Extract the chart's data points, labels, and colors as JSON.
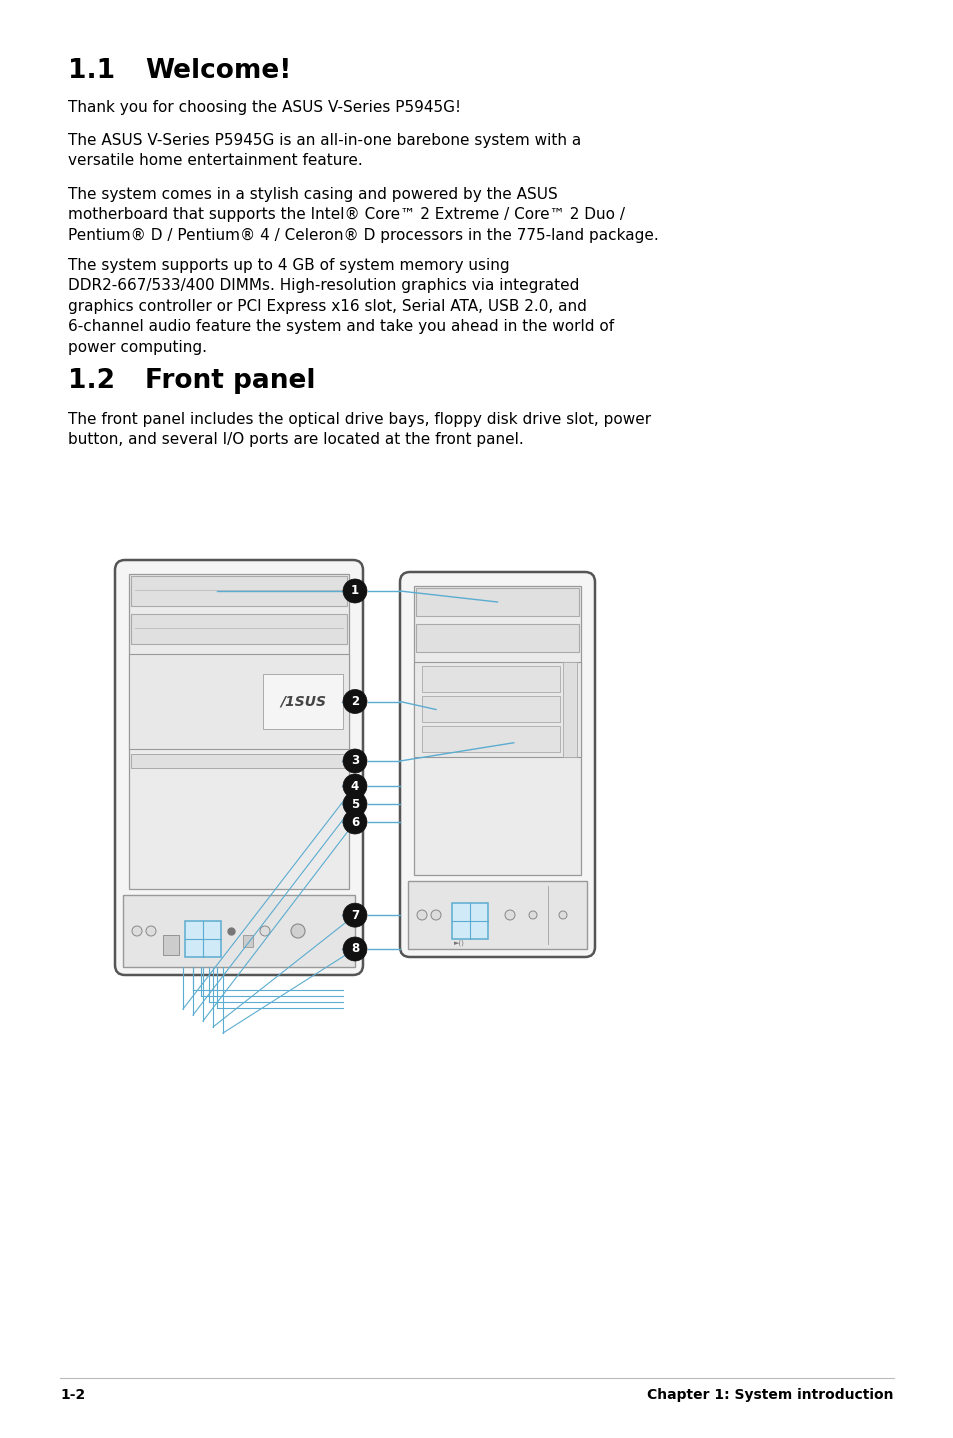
{
  "bg_color": "#ffffff",
  "title1_num": "1.1",
  "title1_text": "Welcome!",
  "title2_num": "1.2",
  "title2_text": "Front panel",
  "para1": "Thank you for choosing the ASUS V-Series P5945G!",
  "para2": "The ASUS V-Series P5945G is an all-in-one barebone system with a\nversatile home entertainment feature.",
  "para3": "The system comes in a stylish casing and powered by the ASUS\nmotherboard that supports the Intel® Core™ 2 Extreme / Core™ 2 Duo /\nPentium® D / Pentium® 4 / Celeron® D processors in the 775-land package.",
  "para4": "The system supports up to 4 GB of system memory using\nDDR2-667/533/400 DIMMs. High-resolution graphics via integrated\ngraphics controller or PCI Express x16 slot, Serial ATA, USB 2.0, and\n6-channel audio feature the system and take you ahead in the world of\npower computing.",
  "para5": "The front panel includes the optical drive bays, floppy disk drive slot, power\nbutton, and several I/O ports are located at the front panel.",
  "footer_left": "1-2",
  "footer_right": "Chapter 1: System introduction",
  "line_color": "#5bacd0",
  "text_color": "#000000",
  "case_edge": "#555555",
  "case_face": "#f5f5f5",
  "inner_edge": "#999999",
  "inner_face": "#eeeeee",
  "slot_edge": "#aaaaaa",
  "slot_face": "#e5e5e5",
  "usb_edge": "#5bacd0",
  "usb_face": "#d0eaf7"
}
